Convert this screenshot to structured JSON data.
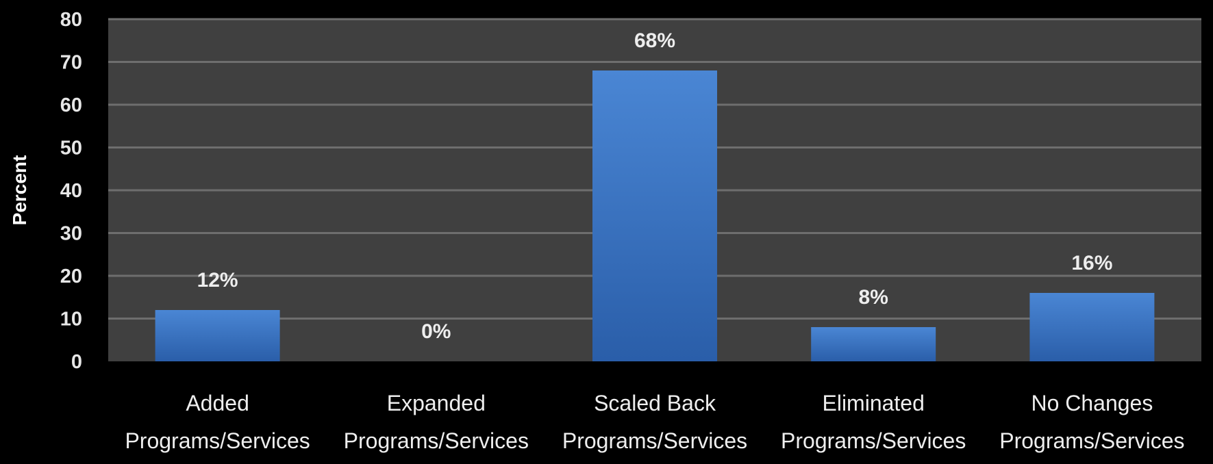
{
  "chart_data": {
    "type": "bar",
    "ylabel": "Percent",
    "xlabel": "",
    "ylim": [
      0,
      80
    ],
    "yticks": [
      0,
      10,
      20,
      30,
      40,
      50,
      60,
      70,
      80
    ],
    "grid": true,
    "categories": [
      "Added Programs/Services",
      "Expanded Programs/Services",
      "Scaled Back Programs/Services",
      "Eliminated Programs/Services",
      "No Changes Programs/Services"
    ],
    "category_lines": [
      [
        "Added",
        "Programs/Services"
      ],
      [
        "Expanded",
        "Programs/Services"
      ],
      [
        "Scaled Back",
        "Programs/Services"
      ],
      [
        "Eliminated",
        "Programs/Services"
      ],
      [
        "No Changes",
        "Programs/Services"
      ]
    ],
    "values": [
      12,
      0,
      68,
      8,
      16
    ],
    "data_labels": [
      "12%",
      "0%",
      "68%",
      "8%",
      "16%"
    ],
    "colors": {
      "background": "#000000",
      "plot_area": "#404040",
      "gridline": "#6e6e6e",
      "bar_top": "#4a86d4",
      "bar_bottom": "#2a5ea9"
    }
  }
}
